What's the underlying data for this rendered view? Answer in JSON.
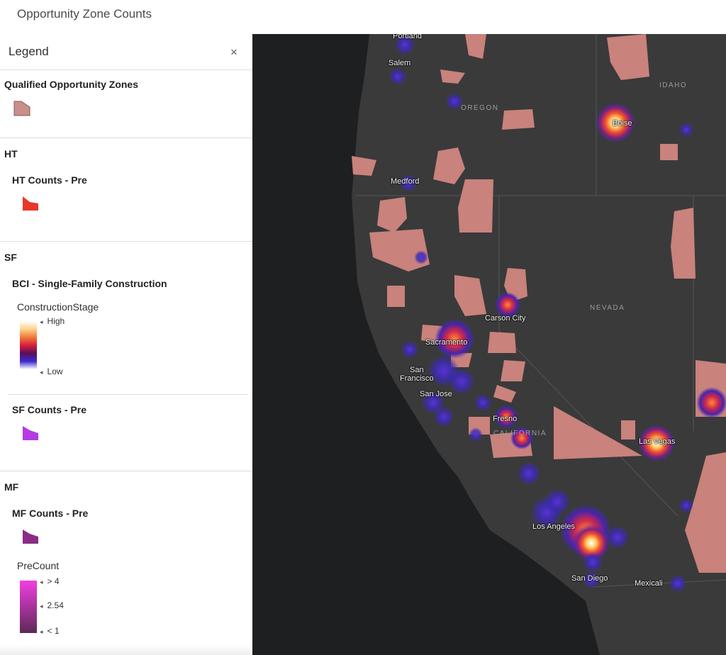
{
  "app": {
    "title": "Opportunity Zone Counts"
  },
  "legend": {
    "title": "Legend",
    "close_icon": "×",
    "groups": {
      "qoz": {
        "layer_title": "Qualified Opportunity Zones",
        "swatch_color": "#c98f8b"
      },
      "ht": {
        "group_title": "HT",
        "layer_title": "HT Counts - Pre",
        "swatch_color": "#e8372a"
      },
      "sf": {
        "group_title": "SF",
        "bci": {
          "layer_title": "BCI - Single-Family Construction",
          "field": "ConstructionStage",
          "high_label": "High",
          "low_label": "Low",
          "ramp_colors": [
            "#ffffff",
            "#fbd38b",
            "#f07a3a",
            "#d81f3a",
            "#5b0f5a",
            "#3a2ad0",
            "#ffffff"
          ]
        },
        "counts": {
          "layer_title": "SF Counts - Pre",
          "swatch_color": "#b53ae6"
        }
      },
      "mf": {
        "group_title": "MF",
        "layer_title": "MF Counts - Pre",
        "swatch_color": "#8c2b85",
        "field": "PreCount",
        "max_label": "> 4",
        "mid_label": "2.54",
        "min_label": "< 1",
        "ramp_colors": [
          "#f23fe0",
          "#a8339d",
          "#5a2a55"
        ]
      }
    }
  },
  "map": {
    "background": "#2a2a2a",
    "ocean": "#1e1f21",
    "land": "#3a3a3a",
    "zone_color": "#c9827c",
    "state_labels": {
      "idaho": "IDAHO",
      "oregon": "OREGON",
      "nevada": "NEVADA",
      "california": "CALIFORNIA"
    },
    "city_labels": {
      "portland": "Portland",
      "salem": "Salem",
      "medford": "Medford",
      "boise": "Boise",
      "carson_city": "Carson City",
      "sacramento": "Sacramento",
      "san_francisco": "San\nFrancisco",
      "san_jose": "San Jose",
      "fresno": "Fresno",
      "las_vegas": "Las Vegas",
      "los_angeles": "Los Angeles",
      "san_diego": "San Diego",
      "mexicali": "Mexicali"
    }
  }
}
